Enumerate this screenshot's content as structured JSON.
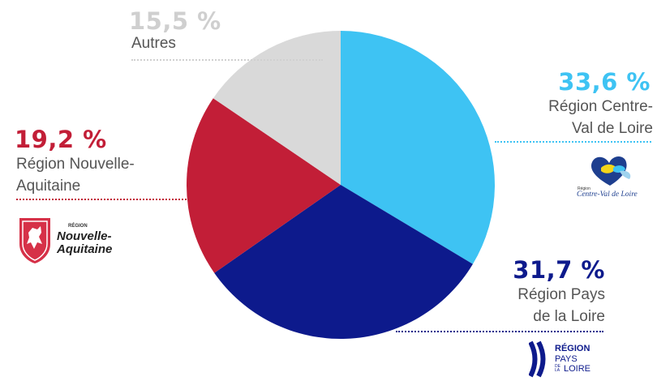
{
  "chart_data": {
    "type": "pie",
    "start": "top, clockwise",
    "slices": [
      {
        "label": "Région Centre-Val de Loire",
        "value": 33.6,
        "value_label": "33,6 %",
        "label_lines": [
          "Région Centre-",
          "Val de Loire"
        ],
        "color": "#3EC3F3"
      },
      {
        "label": "Région Pays de la Loire",
        "value": 31.7,
        "value_label": "31,7 %",
        "label_lines": [
          "Région Pays",
          "de la Loire"
        ],
        "color": "#0D1A8C"
      },
      {
        "label": "Région Nouvelle-Aquitaine",
        "value": 19.2,
        "value_label": "19,2 %",
        "label_lines": [
          "Région Nouvelle-",
          "Aquitaine"
        ],
        "color": "#C21E37"
      },
      {
        "label": "Autres",
        "value": 15.5,
        "value_label": "15,5 %",
        "label_lines": [
          "Autres"
        ],
        "color": "#D9D9D9"
      }
    ]
  },
  "logos": {
    "centre": {
      "main": "Centre-Val de Loire",
      "small": "Région"
    },
    "aquitaine": {
      "small": "RÉGION",
      "line1": "Nouvelle-",
      "line2": "Aquitaine"
    },
    "pays": {
      "l1": "RÉGION",
      "l2": "PAYS",
      "l3a": "DE LA",
      "l3b": "LOIRE"
    }
  },
  "colors": {
    "label_grey": "#555555",
    "autres_pct": "#CFCFCF"
  }
}
